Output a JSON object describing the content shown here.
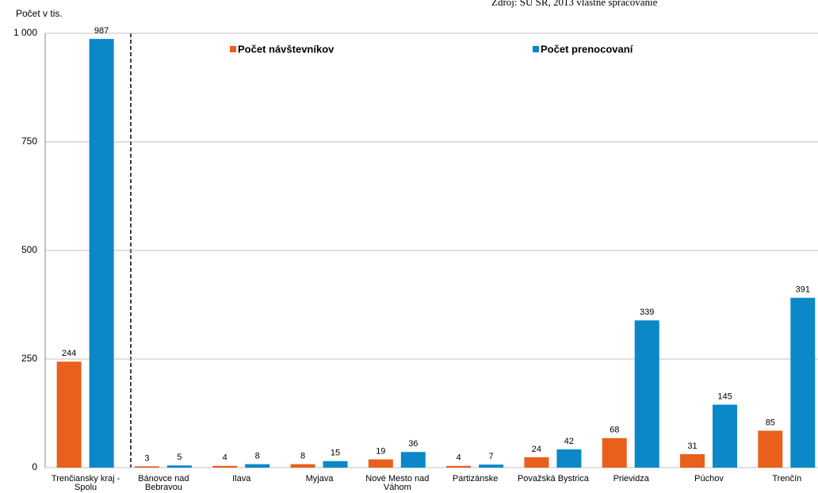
{
  "chart_data": {
    "type": "bar",
    "source": "Zdroj: ŠÚ SR, 2013 vlastné spracovanie",
    "y_label": "Počet v tis.",
    "categories": [
      "Trenčiansky kraj - Spolu",
      "Bánovce nad Bebravou",
      "Ilava",
      "Myjava",
      "Nové Mesto nad Váhom",
      "Partizánske",
      "Považská Bystrica",
      "Prievidza",
      "Púchov",
      "Trenčín"
    ],
    "series": [
      {
        "name": "Počet návštevníkov",
        "color": "#e8601c",
        "values": [
          244,
          3,
          4,
          8,
          19,
          4,
          24,
          68,
          31,
          85
        ]
      },
      {
        "name": "Počet prenocovaní",
        "color": "#0a88c8",
        "values": [
          987,
          5,
          8,
          15,
          36,
          7,
          42,
          339,
          145,
          391
        ]
      }
    ],
    "ylim": [
      0,
      1000
    ],
    "yticks": [
      0,
      250,
      500,
      750,
      {
        "value": 1000,
        "label": "1 000"
      }
    ],
    "grid": true
  }
}
